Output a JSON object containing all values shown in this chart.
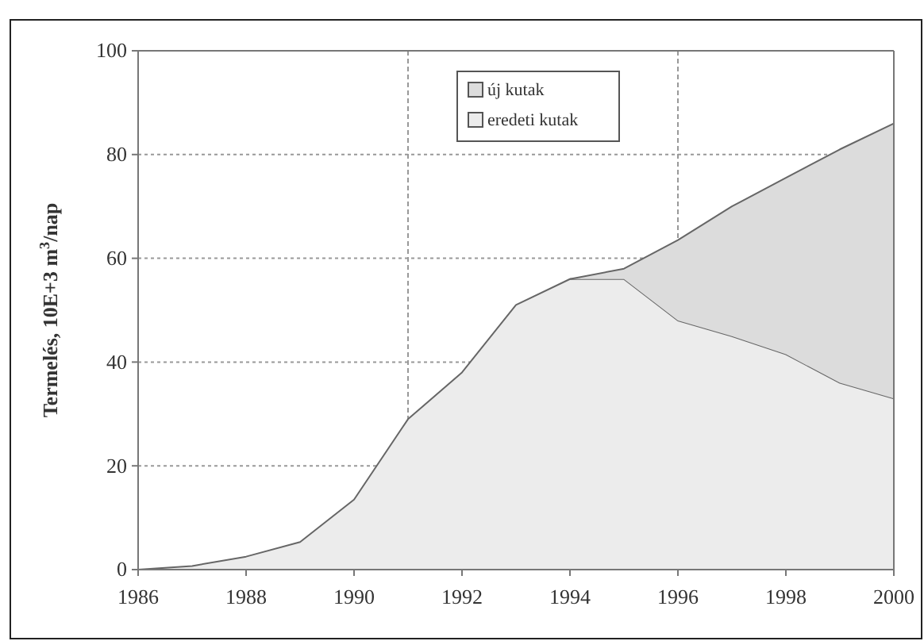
{
  "chart_data": {
    "type": "area",
    "stacked": true,
    "ylabel": "Termelés, 10E+3 m$^{3}$/nap",
    "x": [
      1986,
      1987,
      1988,
      1989,
      1990,
      1991,
      1992,
      1993,
      1994,
      1995,
      1996,
      1997,
      1998,
      1999,
      2000
    ],
    "series": [
      {
        "name": "eredeti kutak",
        "color": "#ececec",
        "values": [
          0,
          0.7,
          2.5,
          5.3,
          13.5,
          29,
          38,
          51,
          56,
          56,
          48,
          45,
          41.5,
          36,
          33
        ]
      },
      {
        "name": "új kutak",
        "color": "#dcdcdc",
        "values": [
          null,
          null,
          null,
          null,
          null,
          null,
          null,
          null,
          0,
          2,
          15.5,
          25,
          34,
          45,
          53
        ]
      }
    ],
    "xlim": [
      1986,
      2000
    ],
    "xticks": [
      1986,
      1988,
      1990,
      1992,
      1994,
      1996,
      1998,
      2000
    ],
    "ylim": [
      0,
      100
    ],
    "yticks": [
      0,
      20,
      40,
      60,
      80,
      100
    ],
    "grid": "y",
    "legend": "top",
    "ref_lines": [
      {
        "axis": "x",
        "value": 1991,
        "line_style": "dashed"
      },
      {
        "axis": "x",
        "value": 1996,
        "line_style": "dashed"
      }
    ]
  }
}
